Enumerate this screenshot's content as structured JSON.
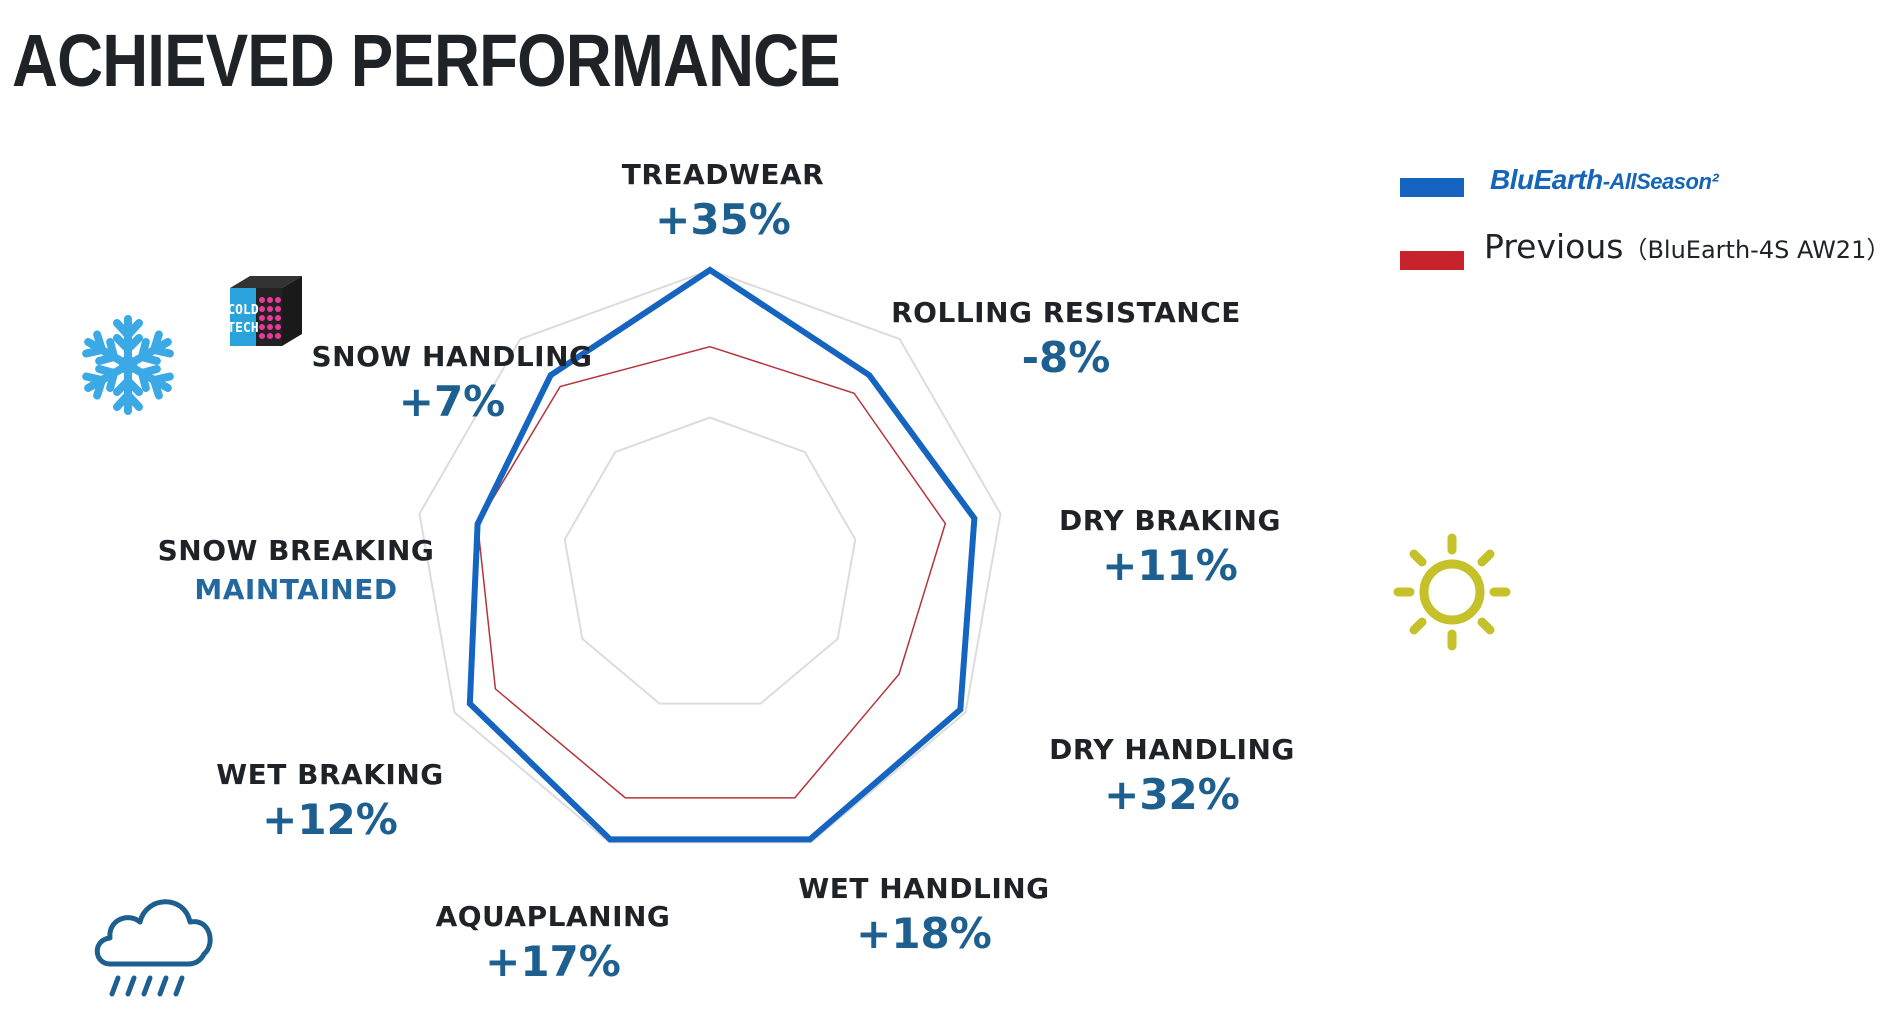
{
  "page": {
    "title": "ACHIEVED PERFORMANCE"
  },
  "legend": {
    "current": {
      "brand_main": "BluEarth",
      "brand_sub": "-AllSeason²",
      "color": "#1565c0"
    },
    "previous": {
      "label": "Previous",
      "note": "（BluEarth-4S AW21）",
      "color": "#c8232c"
    }
  },
  "icons": {
    "snow": "snowflake-icon",
    "coldtech": "coldtech-badge-icon",
    "coldtech_text_1": "COLD",
    "coldtech_text_2": "TECH",
    "sun": "sun-icon",
    "rain": "rain-cloud-icon"
  },
  "chart_data": {
    "type": "radar",
    "axes": [
      {
        "label": "TREADWEAR",
        "change": "+35%",
        "current": 1.0,
        "previous": 0.74
      },
      {
        "label": "ROLLING RESISTANCE",
        "change": "-8%",
        "current": 0.84,
        "previous": 0.76
      },
      {
        "label": "DRY BRAKING",
        "change": "+11%",
        "current": 0.91,
        "previous": 0.81
      },
      {
        "label": "DRY HANDLING",
        "change": "+32%",
        "current": 0.98,
        "previous": 0.74
      },
      {
        "label": "WET HANDLING",
        "change": "+18%",
        "current": 0.99,
        "previous": 0.84
      },
      {
        "label": "AQUAPLANING",
        "change": "+17%",
        "current": 0.99,
        "previous": 0.84
      },
      {
        "label": "WET BRAKING",
        "change": "+12%",
        "current": 0.94,
        "previous": 0.84
      },
      {
        "label": "SNOW BREAKING",
        "change": "MAINTAINED",
        "current": 0.8,
        "previous": 0.8
      },
      {
        "label": "SNOW HANDLING",
        "change": "+7%",
        "current": 0.84,
        "previous": 0.79
      }
    ],
    "rings": [
      0.5,
      1.0
    ],
    "series": [
      {
        "key": "current",
        "color": "#1565c0"
      },
      {
        "key": "previous",
        "color": "#b5343c"
      }
    ]
  }
}
